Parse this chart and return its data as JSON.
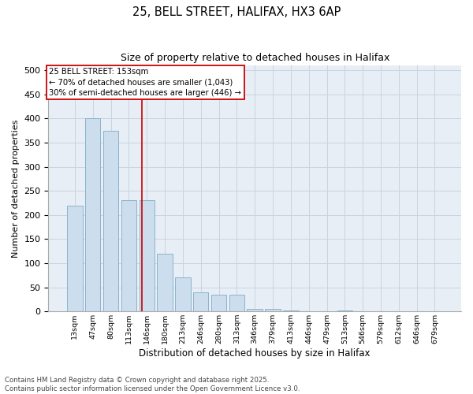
{
  "title1": "25, BELL STREET, HALIFAX, HX3 6AP",
  "title2": "Size of property relative to detached houses in Halifax",
  "xlabel": "Distribution of detached houses by size in Halifax",
  "ylabel": "Number of detached properties",
  "categories": [
    "13sqm",
    "47sqm",
    "80sqm",
    "113sqm",
    "146sqm",
    "180sqm",
    "213sqm",
    "246sqm",
    "280sqm",
    "313sqm",
    "346sqm",
    "379sqm",
    "413sqm",
    "446sqm",
    "479sqm",
    "513sqm",
    "546sqm",
    "579sqm",
    "612sqm",
    "646sqm",
    "679sqm"
  ],
  "values": [
    220,
    400,
    375,
    230,
    230,
    120,
    70,
    40,
    35,
    35,
    5,
    5,
    2,
    1,
    0,
    2,
    1,
    0,
    0,
    1,
    0
  ],
  "bar_color": "#ccdded",
  "bar_edge_color": "#8ab4cc",
  "vline_index": 3.72,
  "vline_color": "#cc0000",
  "box_edge_color": "#cc0000",
  "annotation_box_text": "25 BELL STREET: 153sqm\n← 70% of detached houses are smaller (1,043)\n30% of semi-detached houses are larger (446) →",
  "grid_color": "#c8d4e0",
  "bg_color": "#e8eef6",
  "footer1": "Contains HM Land Registry data © Crown copyright and database right 2025.",
  "footer2": "Contains public sector information licensed under the Open Government Licence v3.0.",
  "ylim": [
    0,
    510
  ],
  "yticks": [
    0,
    50,
    100,
    150,
    200,
    250,
    300,
    350,
    400,
    450,
    500
  ],
  "figwidth": 6.0,
  "figheight": 5.0,
  "dpi": 100
}
